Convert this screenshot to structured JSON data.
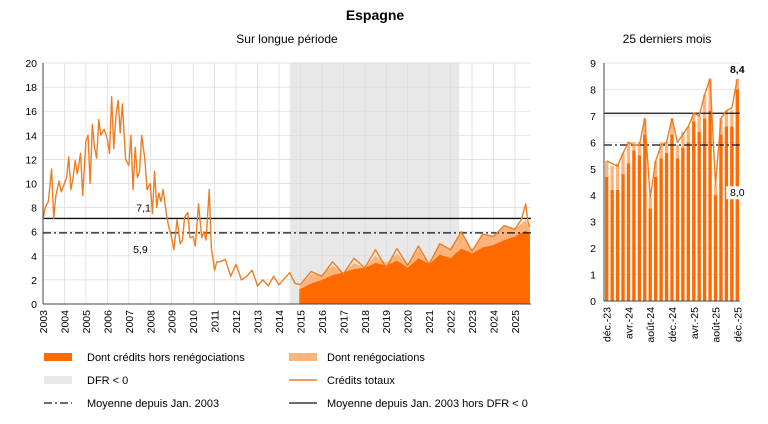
{
  "figure": {
    "title": "Espagne",
    "colors": {
      "hors": "#ff6a00",
      "reneg": "#fbb57c",
      "total": "#ef7d22",
      "dfr": "#e8e8e8",
      "lines": "#111111"
    }
  },
  "chart_data": [
    {
      "type": "line",
      "title": "Sur longue période",
      "x_tick_labels": [
        "2003",
        "2004",
        "2005",
        "2006",
        "2007",
        "2008",
        "2009",
        "2010",
        "2011",
        "2012",
        "2013",
        "2014",
        "2015",
        "2016",
        "2017",
        "2018",
        "2019",
        "2020",
        "2021",
        "2022",
        "2023",
        "2024",
        "2025"
      ],
      "y_tick_labels": [
        "0",
        "2",
        "4",
        "6",
        "8",
        "10",
        "12",
        "14",
        "16",
        "18",
        "20"
      ],
      "xlim": [
        2003,
        2025.75
      ],
      "ylim": [
        0,
        20
      ],
      "dfr_period": [
        2014.5,
        2022.4
      ],
      "mean_all": 5.9,
      "mean_excl_dfr": 7.1,
      "mean_all_label": "5,9",
      "mean_excl_label": "7,1",
      "series": [
        {
          "name": "Crédits totaux",
          "type": "line",
          "x": [
            2003.0,
            2003.1,
            2003.25,
            2003.4,
            2003.5,
            2003.6,
            2003.75,
            2003.85,
            2004.0,
            2004.1,
            2004.2,
            2004.3,
            2004.4,
            2004.5,
            2004.6,
            2004.75,
            2004.85,
            2005.0,
            2005.1,
            2005.2,
            2005.3,
            2005.4,
            2005.5,
            2005.6,
            2005.7,
            2005.85,
            2006.0,
            2006.1,
            2006.2,
            2006.3,
            2006.4,
            2006.5,
            2006.6,
            2006.7,
            2006.85,
            2007.0,
            2007.1,
            2007.2,
            2007.3,
            2007.4,
            2007.5,
            2007.6,
            2007.75,
            2007.85,
            2008.0,
            2008.1,
            2008.2,
            2008.3,
            2008.4,
            2008.5,
            2008.6,
            2008.75,
            2008.85,
            2009.0,
            2009.1,
            2009.25,
            2009.4,
            2009.5,
            2009.6,
            2009.75,
            2009.85,
            2010.0,
            2010.1,
            2010.25,
            2010.4,
            2010.5,
            2010.6,
            2010.75,
            2010.85,
            2011.0,
            2011.1,
            2011.25,
            2011.5,
            2011.75,
            2012.0,
            2012.25,
            2012.5,
            2012.75,
            2013.0,
            2013.25,
            2013.5,
            2013.75,
            2014.0,
            2014.25,
            2014.5,
            2014.75,
            2015.0,
            2015.5,
            2016.0,
            2016.5,
            2017.0,
            2017.5,
            2018.0,
            2018.5,
            2019.0,
            2019.5,
            2020.0,
            2020.5,
            2021.0,
            2021.5,
            2022.0,
            2022.5,
            2023.0,
            2023.5,
            2024.0,
            2024.5,
            2025.0,
            2025.3,
            2025.5,
            2025.6,
            2025.7
          ],
          "values": [
            7.0,
            8.0,
            8.5,
            11.2,
            7.1,
            9.0,
            10.2,
            9.3,
            10.0,
            10.5,
            12.2,
            9.5,
            10.4,
            11.9,
            10.8,
            12.5,
            9.0,
            13.5,
            14.0,
            10.0,
            14.9,
            13.0,
            12.1,
            15.3,
            14.0,
            14.5,
            13.7,
            12.5,
            17.2,
            12.9,
            15.6,
            16.9,
            14.2,
            16.6,
            12.0,
            11.5,
            14.0,
            9.5,
            13.0,
            10.5,
            11.0,
            14.0,
            12.0,
            9.5,
            10.0,
            7.5,
            11.0,
            8.0,
            9.2,
            8.5,
            9.5,
            7.5,
            6.5,
            5.5,
            4.5,
            7.0,
            5.0,
            5.3,
            7.2,
            7.6,
            5.5,
            5.6,
            4.8,
            8.3,
            5.5,
            6.0,
            5.3,
            9.5,
            4.6,
            2.8,
            3.5,
            3.5,
            3.7,
            2.3,
            3.3,
            2.0,
            2.3,
            2.8,
            1.5,
            2.0,
            1.5,
            2.3,
            1.6,
            2.1,
            2.6,
            1.7,
            1.6,
            2.7,
            2.3,
            3.5,
            2.5,
            3.8,
            3.0,
            4.5,
            3.0,
            4.6,
            3.2,
            4.8,
            3.3,
            5.0,
            4.5,
            6.0,
            4.4,
            5.8,
            5.6,
            6.5,
            6.2,
            7.0,
            8.3,
            6.9,
            6.4
          ]
        },
        {
          "name": "Dont crédits hors renégociations",
          "type": "area",
          "x": [
            2014.95,
            2015.5,
            2016.0,
            2016.5,
            2017.0,
            2017.5,
            2018.0,
            2018.5,
            2019.0,
            2019.5,
            2020.0,
            2020.5,
            2021.0,
            2021.5,
            2022.0,
            2022.5,
            2023.0,
            2023.5,
            2024.0,
            2024.5,
            2025.0,
            2025.5,
            2025.7
          ],
          "values": [
            1.2,
            1.7,
            2.0,
            2.4,
            2.6,
            2.9,
            3.0,
            3.4,
            3.2,
            3.6,
            3.0,
            3.8,
            3.3,
            4.1,
            3.8,
            4.6,
            4.2,
            4.7,
            4.9,
            5.3,
            5.6,
            6.1,
            5.8
          ]
        },
        {
          "name": "Dont renégociations",
          "type": "area",
          "x": [
            2014.95,
            2015.5,
            2016.0,
            2016.5,
            2017.0,
            2017.5,
            2018.0,
            2018.5,
            2019.0,
            2019.5,
            2020.0,
            2020.5,
            2021.0,
            2021.5,
            2022.0,
            2022.5,
            2023.0,
            2023.5,
            2024.0,
            2024.5,
            2025.0,
            2025.5,
            2025.7
          ],
          "values": [
            1.4,
            2.5,
            2.4,
            3.2,
            2.6,
            3.4,
            3.0,
            4.0,
            3.4,
            4.2,
            3.2,
            4.6,
            3.4,
            5.0,
            4.5,
            6.0,
            4.4,
            5.8,
            5.6,
            6.5,
            6.2,
            7.0,
            6.4
          ]
        }
      ]
    },
    {
      "type": "bar",
      "title": "25 derniers mois",
      "x_tick_labels": [
        "déc.-23",
        "avr.-24",
        "août-24",
        "déc.-24",
        "avr.-25",
        "août-25",
        "déc.-25"
      ],
      "y_tick_labels": [
        "0",
        "1",
        "2",
        "3",
        "4",
        "5",
        "6",
        "7",
        "8",
        "9"
      ],
      "ylim": [
        0,
        9
      ],
      "mean_all": 5.9,
      "mean_excl_dfr": 7.1,
      "last_value_label": "8,4",
      "last_hors_label": "8,0",
      "series": [
        {
          "name": "Dont crédits hors renégociations",
          "values": [
            4.7,
            4.2,
            4.2,
            4.8,
            5.2,
            5.7,
            5.5,
            6.3,
            3.5,
            4.7,
            5.4,
            5.6,
            6.3,
            5.4,
            5.8,
            6.0,
            6.8,
            6.4,
            6.9,
            7.2,
            4.0,
            6.3,
            6.6,
            6.6,
            8.0
          ]
        },
        {
          "name": "Dont renégociations",
          "values": [
            0.6,
            0.9,
            1.0,
            0.8,
            0.8,
            0.3,
            0.5,
            0.6,
            0.4,
            0.6,
            0.6,
            0.4,
            0.6,
            0.5,
            0.6,
            0.6,
            0.3,
            0.6,
            0.9,
            1.2,
            0.4,
            0.6,
            0.6,
            0.6,
            0.4
          ]
        },
        {
          "name": "Crédits totaux",
          "values": [
            5.3,
            5.2,
            5.1,
            5.6,
            6.0,
            5.9,
            5.9,
            6.9,
            3.9,
            5.3,
            5.9,
            6.0,
            6.9,
            6.0,
            6.3,
            6.6,
            7.1,
            7.0,
            7.8,
            8.4,
            4.4,
            6.9,
            7.2,
            7.3,
            8.4
          ]
        }
      ]
    }
  ],
  "legend": [
    {
      "label": "Dont crédits hors renégociations",
      "style": "bar",
      "color": "#ff6a00"
    },
    {
      "label": "Dont renégociations",
      "style": "bar",
      "color": "#fbb57c"
    },
    {
      "label": "DFR < 0",
      "style": "bar",
      "color": "#e8e8e8"
    },
    {
      "label": "Crédits totaux",
      "style": "line",
      "color": "#ef7d22"
    },
    {
      "label": "Moyenne depuis Jan. 2003",
      "style": "dashdot",
      "color": "#111111"
    },
    {
      "label": "Moyenne depuis Jan. 2003 hors DFR < 0",
      "style": "solid",
      "color": "#111111"
    }
  ]
}
